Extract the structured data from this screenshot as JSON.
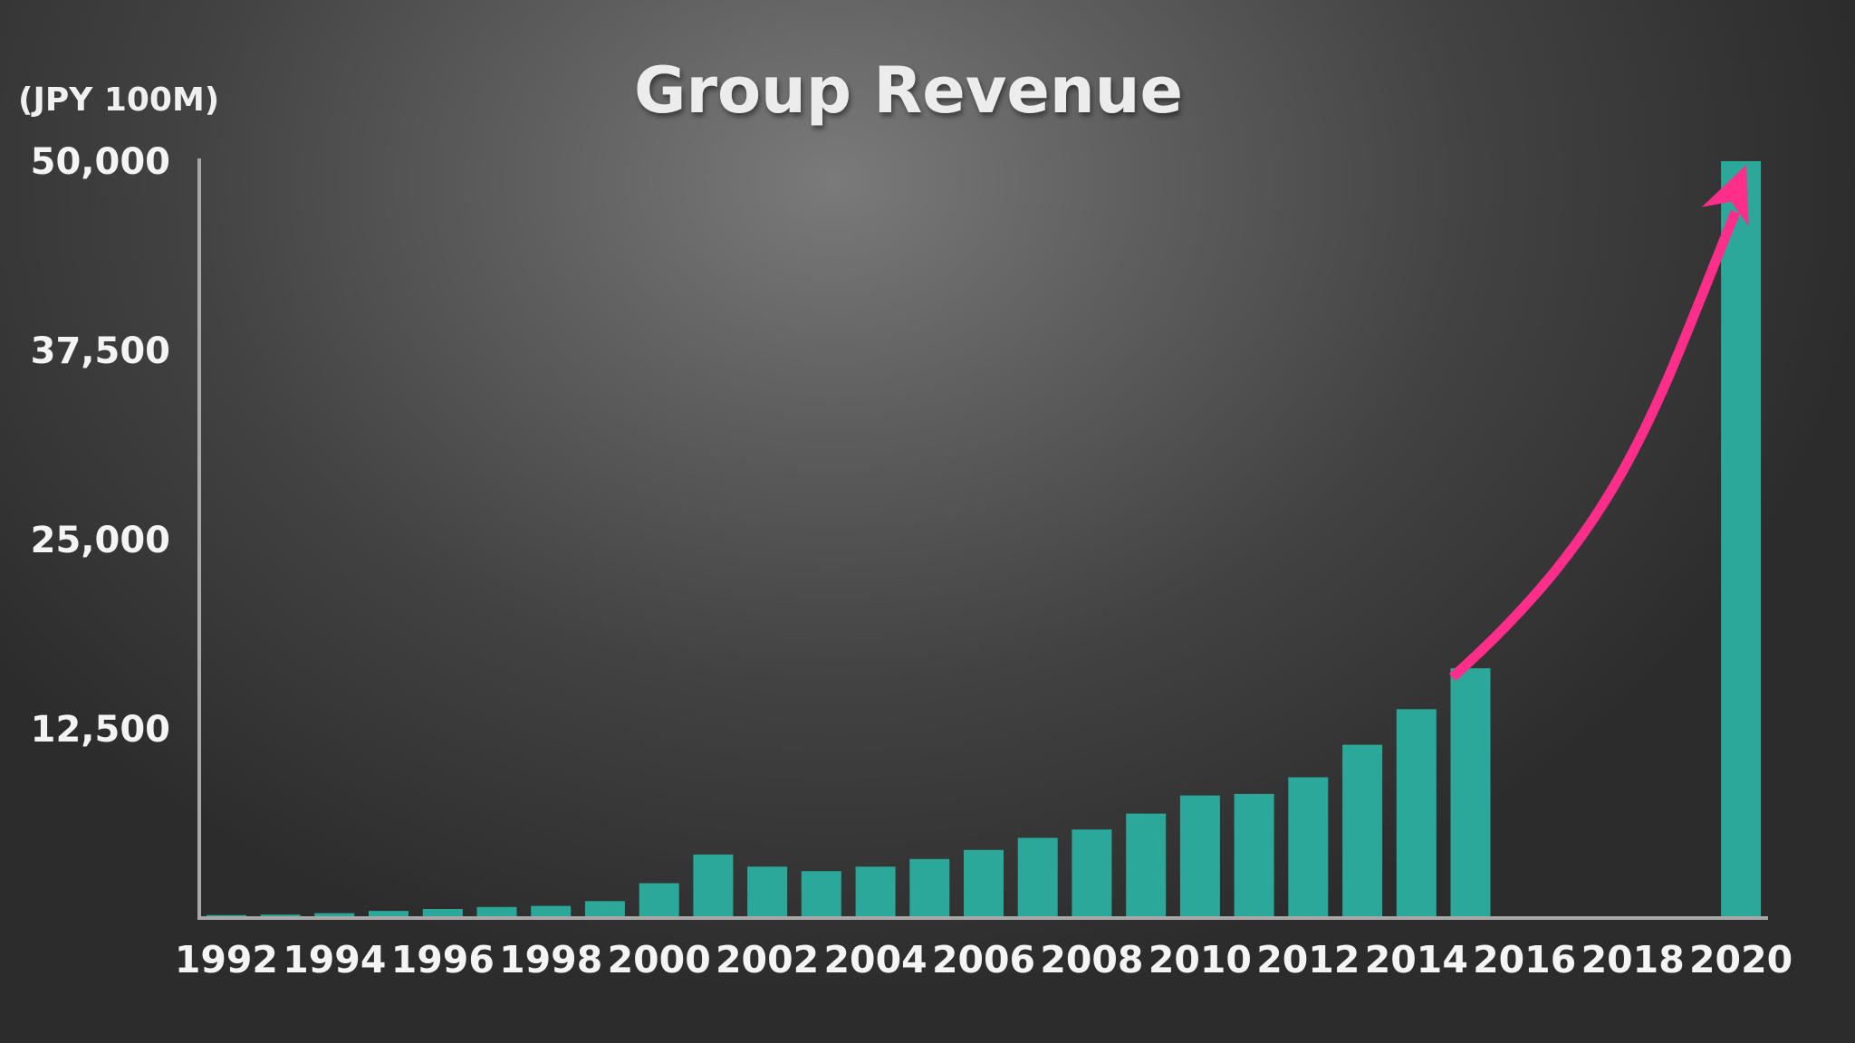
{
  "chart_data": {
    "type": "bar",
    "title": "Group Revenue",
    "ylabel": "(JPY 100M)",
    "xlabel": "",
    "ylim": [
      0,
      50000
    ],
    "yticks": [
      {
        "value": 12500,
        "label": "12,500"
      },
      {
        "value": 25000,
        "label": "25,000"
      },
      {
        "value": 37500,
        "label": "37,500"
      },
      {
        "value": 50000,
        "label": "50,000"
      }
    ],
    "x_range": [
      1991.5,
      2020.5
    ],
    "xticks": [
      "1992",
      "1994",
      "1996",
      "1998",
      "2000",
      "2002",
      "2004",
      "2006",
      "2008",
      "2010",
      "2012",
      "2014",
      "2016",
      "2018",
      "2020"
    ],
    "grid": false,
    "legend": "none",
    "categories": [
      "1992",
      "1993",
      "1994",
      "1995",
      "1996",
      "1997",
      "1998",
      "1999",
      "2000",
      "2001",
      "2002",
      "2003",
      "2004",
      "2005",
      "2006",
      "2007",
      "2008",
      "2009",
      "2010",
      "2011",
      "2012",
      "2013",
      "2014",
      "2015",
      "2020"
    ],
    "values": [
      200,
      230,
      320,
      470,
      600,
      730,
      800,
      1120,
      2300,
      4200,
      3400,
      3100,
      3400,
      3900,
      4500,
      5300,
      5850,
      6900,
      8100,
      8200,
      9300,
      11450,
      13800,
      16500,
      50000
    ],
    "bar_color": "#2ba899",
    "axis_color": "#a8a8a8",
    "annotation": {
      "type": "arrow",
      "from_category": "2015",
      "to_category": "2020",
      "color": "#ff2e8a"
    }
  }
}
